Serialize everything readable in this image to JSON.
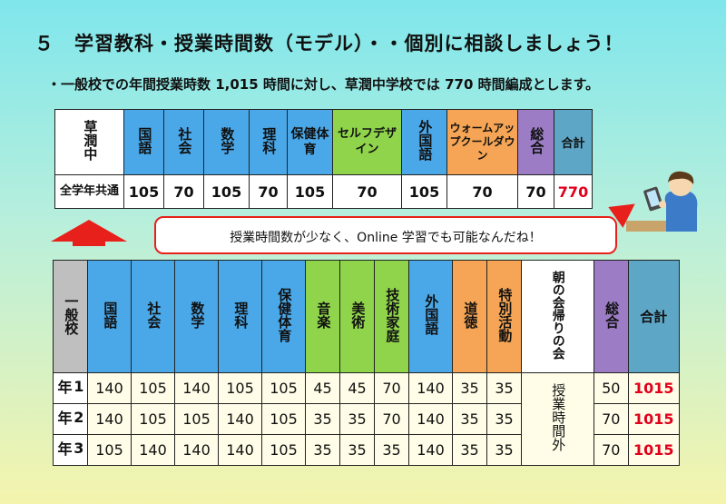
{
  "title": "５　学習教科・授業時間数（モデル）・・個別に相談しましょう！",
  "subtitle": "・一般校での年間授業時数 1,015 時間に対し、草潤中学校では 770 時間編成とします。",
  "model_table": {
    "corner": "草潤中",
    "headers": [
      "国語",
      "社会",
      "数学",
      "理科",
      "保健体育",
      "セルフデザイン",
      "外国語",
      "ウォームアップクールダウン",
      "総合",
      "合計"
    ],
    "row_label": "全学年共通",
    "values": [
      "105",
      "70",
      "105",
      "70",
      "105",
      "70",
      "105",
      "70",
      "70",
      "770"
    ]
  },
  "callout": {
    "text": "授業時間数が少なく、Online 学習でも可能なんだね！"
  },
  "general_table": {
    "corner": "一般校",
    "headers": [
      "国語",
      "社会",
      "数学",
      "理科",
      "保健体育",
      "音楽",
      "美術",
      "技術家庭",
      "外国語",
      "道徳",
      "特別活動",
      "朝の会帰りの会",
      "総合",
      "合計"
    ],
    "merged_note": "授業時間外",
    "rows": [
      {
        "label": "1年",
        "values": [
          "140",
          "105",
          "140",
          "105",
          "105",
          "45",
          "45",
          "70",
          "140",
          "35",
          "35",
          "50",
          "1015"
        ]
      },
      {
        "label": "2年",
        "values": [
          "140",
          "105",
          "105",
          "140",
          "105",
          "35",
          "35",
          "70",
          "140",
          "35",
          "35",
          "70",
          "1015"
        ]
      },
      {
        "label": "3年",
        "values": [
          "105",
          "140",
          "140",
          "140",
          "105",
          "35",
          "35",
          "35",
          "140",
          "35",
          "35",
          "70",
          "1015"
        ]
      }
    ]
  },
  "colors": {
    "subject_blue": "#4aa8e9",
    "green": "#8fd44b",
    "orange": "#f5a555",
    "purple": "#9b7cc5",
    "total_teal": "#5da6c6",
    "accent_red": "#e0001b"
  }
}
